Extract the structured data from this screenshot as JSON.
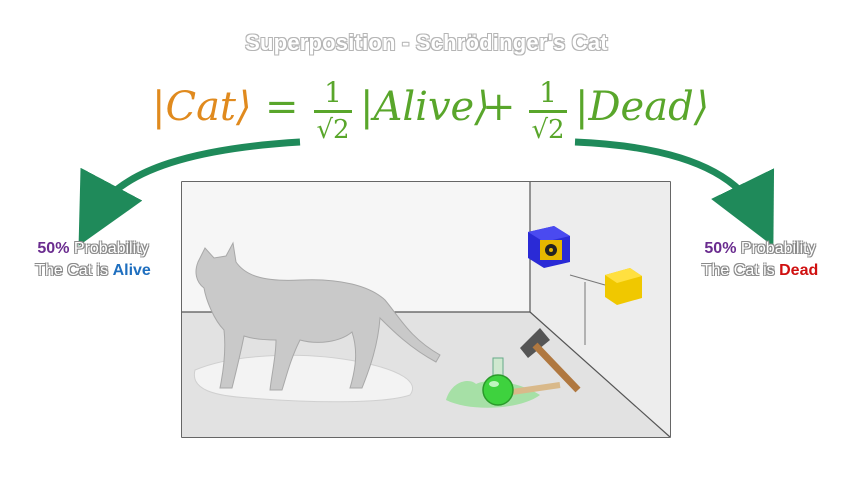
{
  "title": "Superposition - Schrödinger's Cat",
  "equation": {
    "cat": "|Cat⟩",
    "equals": "=",
    "frac1_num": "1",
    "frac1_den": "√2",
    "alive_ket": "|Alive⟩",
    "plus": "+",
    "frac2_num": "1",
    "frac2_den": "√2",
    "dead_ket": "|Dead⟩"
  },
  "left_label": {
    "percent": "50%",
    "word": "Probability",
    "line2": "The Cat is",
    "state": "Alive"
  },
  "right_label": {
    "percent": "50%",
    "word": "Probability",
    "line2": "The Cat is",
    "state": "Dead"
  },
  "colors": {
    "arrow": "#1f8a5a",
    "cat_orange": "#e08a1e",
    "green": "#59a62b",
    "purple": "#6a2c8f",
    "alive_blue": "#1f6fbf",
    "dead_red": "#d01010"
  }
}
